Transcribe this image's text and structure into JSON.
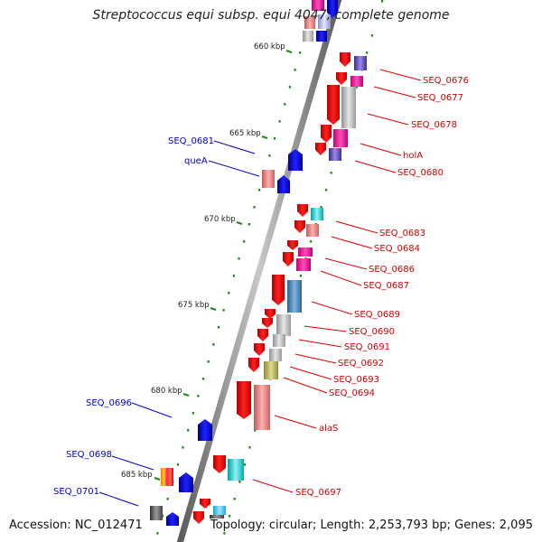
{
  "title": "Streptococcus equi subsp. equi 4047, complete genome",
  "footer": {
    "accession": "Accession: NC_012471",
    "stats": "Topology: circular; Length: 2,253,793 bp; Genes: 2,095"
  },
  "scale_labels": [
    "660 kbp",
    "665 kbp",
    "670 kbp",
    "675 kbp",
    "680 kbp",
    "685 kbp"
  ],
  "right_genes": [
    "SEQ_0676",
    "SEQ_0677",
    "SEQ_0678",
    "holA",
    "SEQ_0680",
    "SEQ_0683",
    "SEQ_0684",
    "SEQ_0686",
    "SEQ_0687",
    "SEQ_0689",
    "SEQ_0690",
    "SEQ_0691",
    "SEQ_0692",
    "SEQ_0693",
    "SEQ_0694",
    "alaS",
    "SEQ_0697"
  ],
  "left_genes": [
    "SEQ_0681",
    "queA",
    "SEQ_0696",
    "SEQ_0698",
    "SEQ_0701"
  ],
  "colors": {
    "forward_label": "#d10000",
    "reverse_label": "#0000cc",
    "backbone": "#808080",
    "scale_dots": "#1a8a1a"
  }
}
